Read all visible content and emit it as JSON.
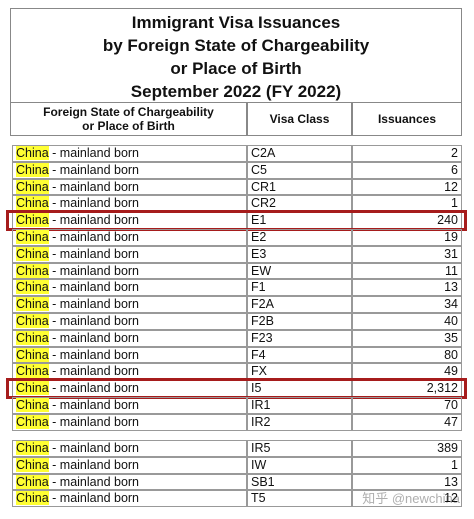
{
  "title": [
    "Immigrant Visa Issuances",
    "by Foreign State of Chargeability",
    "or Place of Birth",
    "September 2022 (FY 2022)"
  ],
  "header": {
    "place": [
      "Foreign State of Chargeability",
      "or Place of Birth"
    ],
    "visa_class": "Visa Class",
    "issuances": "Issuances"
  },
  "groups": [
    {
      "rows": [
        {
          "country": "China",
          "suffix": "- mainland born",
          "visa_class": "C2A",
          "issuances": "2"
        },
        {
          "country": "China",
          "suffix": "- mainland born",
          "visa_class": "C5",
          "issuances": "6"
        },
        {
          "country": "China",
          "suffix": "- mainland born",
          "visa_class": "CR1",
          "issuances": "12"
        },
        {
          "country": "China",
          "suffix": "- mainland born",
          "visa_class": "CR2",
          "issuances": "1"
        },
        {
          "country": "China",
          "suffix": "- mainland born",
          "visa_class": "E1",
          "issuances": "240",
          "highlight": true
        },
        {
          "country": "China",
          "suffix": "- mainland born",
          "visa_class": "E2",
          "issuances": "19"
        },
        {
          "country": "China",
          "suffix": "- mainland born",
          "visa_class": "E3",
          "issuances": "31"
        },
        {
          "country": "China",
          "suffix": "- mainland born",
          "visa_class": "EW",
          "issuances": "11"
        },
        {
          "country": "China",
          "suffix": "- mainland born",
          "visa_class": "F1",
          "issuances": "13"
        },
        {
          "country": "China",
          "suffix": "- mainland born",
          "visa_class": "F2A",
          "issuances": "34"
        },
        {
          "country": "China",
          "suffix": "- mainland born",
          "visa_class": "F2B",
          "issuances": "40"
        },
        {
          "country": "China",
          "suffix": "- mainland born",
          "visa_class": "F23",
          "issuances": "35"
        },
        {
          "country": "China",
          "suffix": "- mainland born",
          "visa_class": "F4",
          "issuances": "80"
        },
        {
          "country": "China",
          "suffix": "- mainland born",
          "visa_class": "FX",
          "issuances": "49"
        },
        {
          "country": "China",
          "suffix": "- mainland born",
          "visa_class": "I5",
          "issuances": "2,312",
          "highlight": true
        },
        {
          "country": "China",
          "suffix": "- mainland born",
          "visa_class": "IR1",
          "issuances": "70"
        },
        {
          "country": "China",
          "suffix": "- mainland born",
          "visa_class": "IR2",
          "issuances": "47"
        }
      ]
    },
    {
      "rows": [
        {
          "country": "China",
          "suffix": "- mainland born",
          "visa_class": "IR5",
          "issuances": "389"
        },
        {
          "country": "China",
          "suffix": "- mainland born",
          "visa_class": "IW",
          "issuances": "1"
        },
        {
          "country": "China",
          "suffix": "- mainland born",
          "visa_class": "SB1",
          "issuances": "13"
        },
        {
          "country": "China",
          "suffix": "- mainland born",
          "visa_class": "T5",
          "issuances": "12"
        }
      ]
    }
  ],
  "watermark": "知乎 @newchina"
}
